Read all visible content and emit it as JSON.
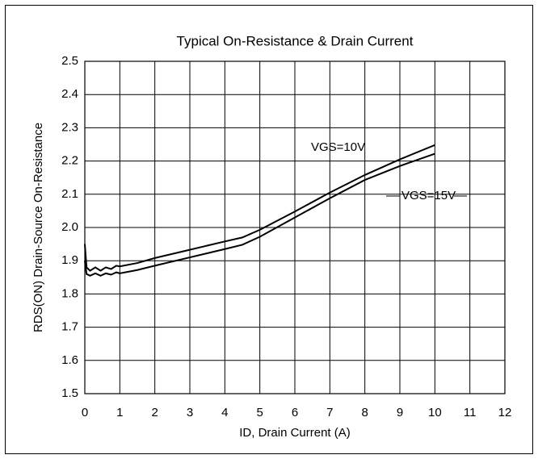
{
  "chart_data": {
    "type": "line",
    "title": "Typical On-Resistance & Drain Current",
    "x_label": "ID, Drain Current (A)",
    "y_label": "RDS(ON)  Drain-Source On-Resistance",
    "x": [
      0,
      0.05,
      0.15,
      0.3,
      0.45,
      0.6,
      0.75,
      0.9,
      1,
      1.5,
      2,
      3,
      4,
      4.5,
      5,
      6,
      7,
      8,
      9,
      10
    ],
    "series": [
      {
        "name": "VGS=10V",
        "color": "#000000",
        "values": [
          1.95,
          1.88,
          1.87,
          1.88,
          1.87,
          1.88,
          1.875,
          1.885,
          1.883,
          1.893,
          1.908,
          1.933,
          1.958,
          1.97,
          1.993,
          2.048,
          2.105,
          2.158,
          2.205,
          2.248
        ]
      },
      {
        "name": "VGS=15V",
        "color": "#000000",
        "values": [
          1.9,
          1.86,
          1.855,
          1.862,
          1.855,
          1.862,
          1.858,
          1.865,
          1.862,
          1.872,
          1.885,
          1.91,
          1.935,
          1.948,
          1.972,
          2.03,
          2.088,
          2.143,
          2.185,
          2.222
        ]
      }
    ],
    "xlim": [
      0,
      12
    ],
    "xticks": [
      0,
      1,
      2,
      3,
      4,
      5,
      6,
      7,
      8,
      9,
      10,
      11,
      12
    ],
    "ylim": [
      1.5,
      2.5
    ],
    "yticks": [
      1.5,
      1.6,
      1.7,
      1.8,
      1.9,
      {
        "value": 2,
        "label": "2.0"
      },
      2.1,
      2.2,
      2.3,
      2.4,
      2.5
    ],
    "grid": true
  }
}
